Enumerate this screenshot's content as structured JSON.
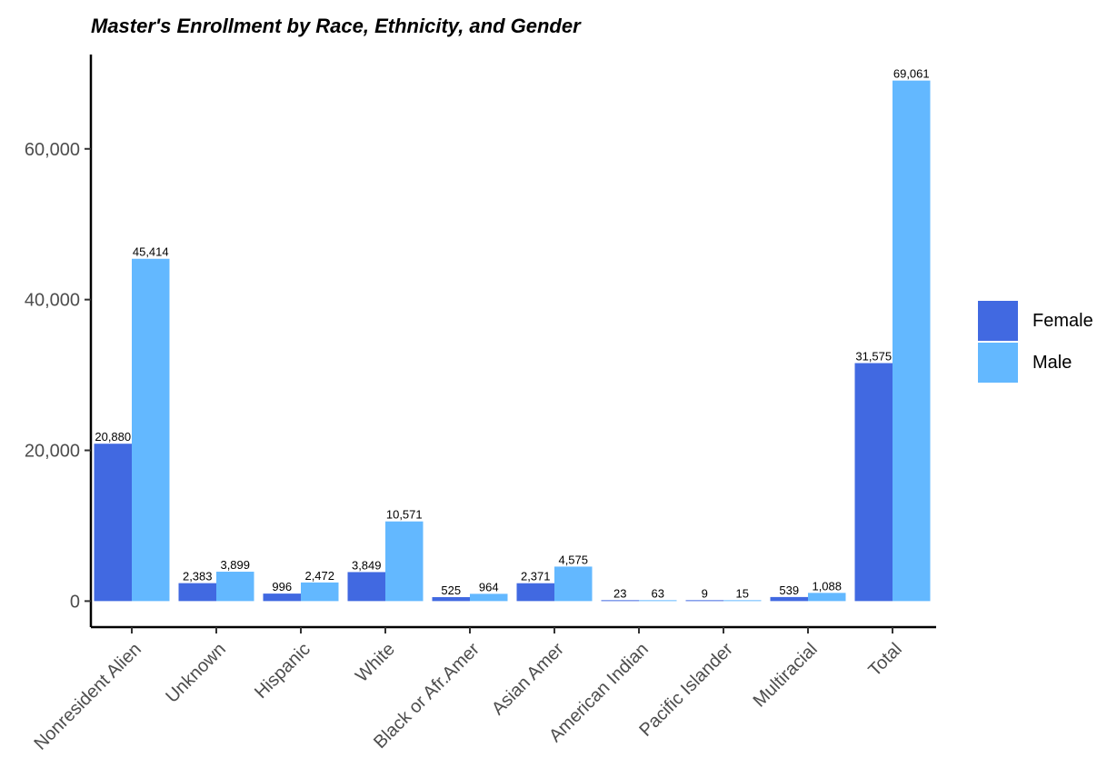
{
  "chart_data": {
    "type": "bar",
    "title": "Master's Enrollment by Race, Ethnicity, and Gender",
    "xlabel": "",
    "ylabel": "",
    "categories": [
      "Nonresident Alien",
      "Unknown",
      "Hispanic",
      "White",
      "Black or Afr.Amer",
      "Asian Amer",
      "American Indian",
      "Pacific Islander",
      "Multiracial",
      "Total"
    ],
    "series": [
      {
        "name": "Female",
        "color": "#4169E1",
        "values": [
          20880,
          2383,
          996,
          3849,
          525,
          2371,
          23,
          9,
          539,
          31575
        ],
        "labels": [
          "20,880",
          "2,383",
          "996",
          "3,849",
          "525",
          "2,371",
          "23",
          "9",
          "539",
          "31,575"
        ]
      },
      {
        "name": "Male",
        "color": "#63B8FF",
        "values": [
          45414,
          3899,
          2472,
          10571,
          964,
          4575,
          63,
          15,
          1088,
          69061
        ],
        "labels": [
          "45,414",
          "3,899",
          "2,472",
          "10,571",
          "964",
          "4,575",
          "63",
          "15",
          "1,088",
          "69,061"
        ]
      }
    ],
    "yticks": [
      0,
      20000,
      40000,
      60000
    ],
    "ytick_labels": [
      "0",
      "20,000",
      "40,000",
      "60,000"
    ],
    "ylim": [
      -3453,
      72514
    ],
    "grid": false,
    "legend_position": "right"
  }
}
